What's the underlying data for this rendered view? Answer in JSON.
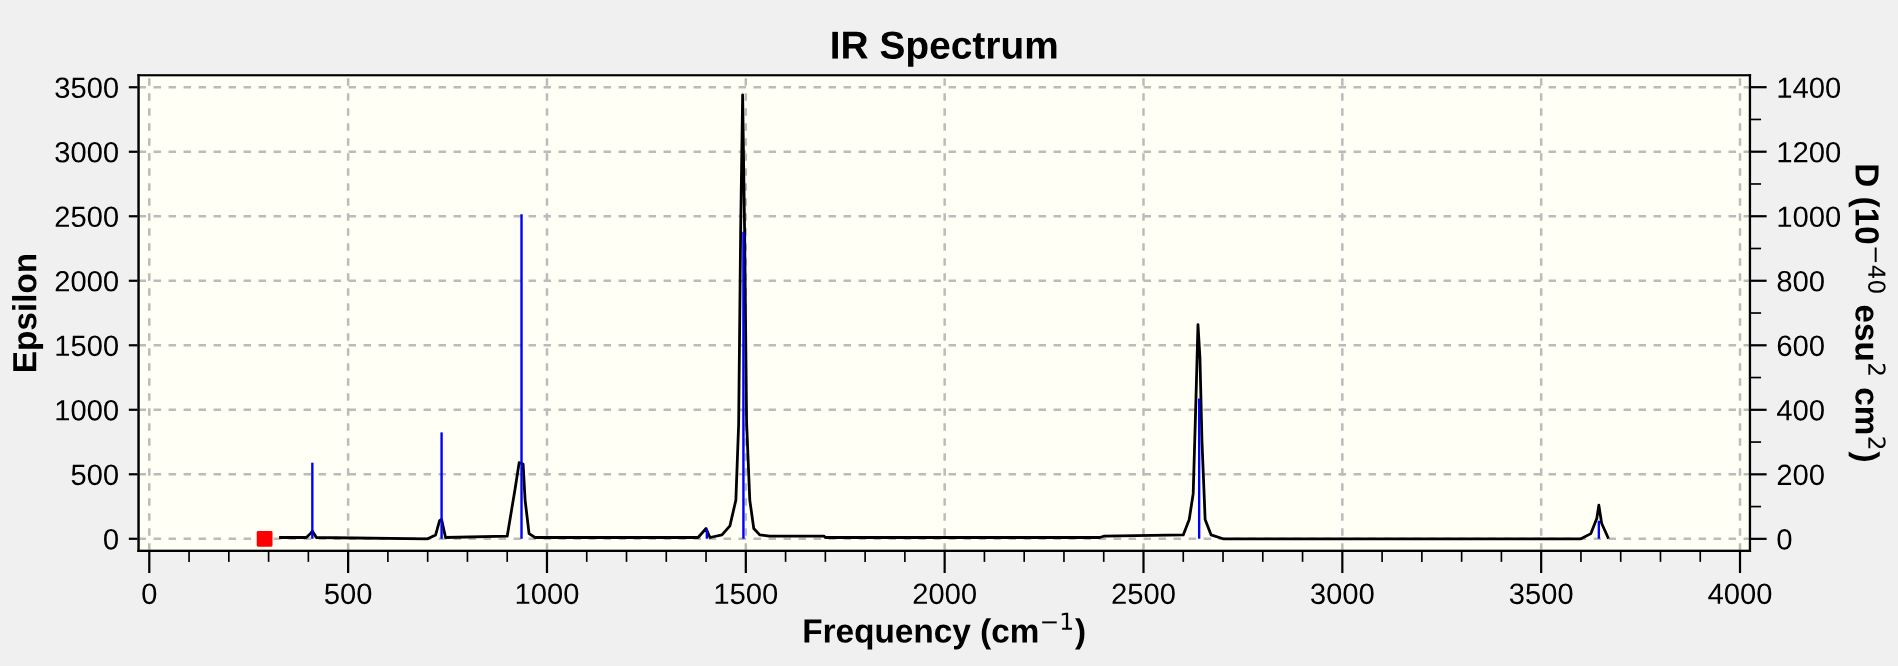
{
  "chart_data": {
    "type": "line",
    "title": "IR Spectrum",
    "xlabel": "Frequency (cm$^{−1}$)",
    "ylabel": "Epsilon",
    "y2label": "D (10$^{−40}$ esu$^{2}$ cm$^{2}$)",
    "xlim": [
      -27,
      4025
    ],
    "ylim": [
      -93,
      3593
    ],
    "y2lim": [
      -37,
      1437
    ],
    "xticks": [
      0,
      {
        "value": 100,
        "label": null
      },
      {
        "value": 200,
        "label": null
      },
      {
        "value": 300,
        "label": null
      },
      {
        "value": 400,
        "label": null
      },
      500,
      {
        "value": 600,
        "label": null
      },
      {
        "value": 700,
        "label": null
      },
      {
        "value": 800,
        "label": null
      },
      {
        "value": 900,
        "label": null
      },
      1000,
      {
        "value": 1100,
        "label": null
      },
      {
        "value": 1200,
        "label": null
      },
      {
        "value": 1300,
        "label": null
      },
      {
        "value": 1400,
        "label": null
      },
      1500,
      {
        "value": 1600,
        "label": null
      },
      {
        "value": 1700,
        "label": null
      },
      {
        "value": 1800,
        "label": null
      },
      {
        "value": 1900,
        "label": null
      },
      2000,
      {
        "value": 2100,
        "label": null
      },
      {
        "value": 2200,
        "label": null
      },
      {
        "value": 2300,
        "label": null
      },
      {
        "value": 2400,
        "label": null
      },
      2500,
      {
        "value": 2600,
        "label": null
      },
      {
        "value": 2700,
        "label": null
      },
      {
        "value": 2800,
        "label": null
      },
      {
        "value": 2900,
        "label": null
      },
      3000,
      {
        "value": 3100,
        "label": null
      },
      {
        "value": 3200,
        "label": null
      },
      {
        "value": 3300,
        "label": null
      },
      {
        "value": 3400,
        "label": null
      },
      3500,
      {
        "value": 3600,
        "label": null
      },
      {
        "value": 3700,
        "label": null
      },
      {
        "value": 3800,
        "label": null
      },
      {
        "value": 3900,
        "label": null
      },
      4000
    ],
    "yticks": [
      0,
      500,
      1000,
      1500,
      2000,
      2500,
      3000,
      3500
    ],
    "y2ticks": [
      0,
      {
        "value": 100,
        "label": null
      },
      200,
      {
        "value": 300,
        "label": null
      },
      400,
      {
        "value": 500,
        "label": null
      },
      600,
      {
        "value": 700,
        "label": null
      },
      800,
      {
        "value": 900,
        "label": null
      },
      1000,
      {
        "value": 1100,
        "label": null
      },
      1200,
      {
        "value": 1300,
        "label": null
      },
      1400
    ],
    "grid": true,
    "legend": false,
    "series": [
      {
        "color": "#000000",
        "x": [
          330,
          395,
          405,
          410,
          420,
          700,
          720,
          730,
          735,
          745,
          900,
          920,
          930,
          940,
          945,
          955,
          970,
          1380,
          1400,
          1410,
          1440,
          1460,
          1475,
          1482,
          1487,
          1492,
          1497,
          1502,
          1510,
          1520,
          1535,
          1560,
          1697,
          1700,
          2390,
          2400,
          2600,
          2615,
          2625,
          2632,
          2637,
          2642,
          2647,
          2655,
          2670,
          2700,
          3600,
          3625,
          3640,
          3645,
          3652,
          3668
        ],
        "values": [
          10,
          10,
          40,
          60,
          10,
          0,
          30,
          140,
          150,
          10,
          20,
          390,
          590,
          580,
          300,
          40,
          10,
          10,
          80,
          10,
          30,
          100,
          300,
          890,
          2380,
          3440,
          2380,
          900,
          300,
          80,
          30,
          20,
          20,
          10,
          10,
          20,
          30,
          150,
          350,
          1090,
          1660,
          1400,
          760,
          150,
          30,
          0,
          0,
          40,
          160,
          260,
          120,
          10
        ]
      },
      {
        "type": "bar",
        "axis": "y2",
        "color": "#0000ff",
        "x": [
          410,
          523,
          735,
          936,
          1402,
          1494,
          2640,
          3645
        ],
        "values": [
          236,
          null,
          330,
          1006,
          31,
          952,
          435,
          56
        ]
      },
      {
        "type": "scatter",
        "color": "#ff0000",
        "marker": "square",
        "x": [
          290
        ],
        "values": [
          0
        ]
      }
    ]
  }
}
